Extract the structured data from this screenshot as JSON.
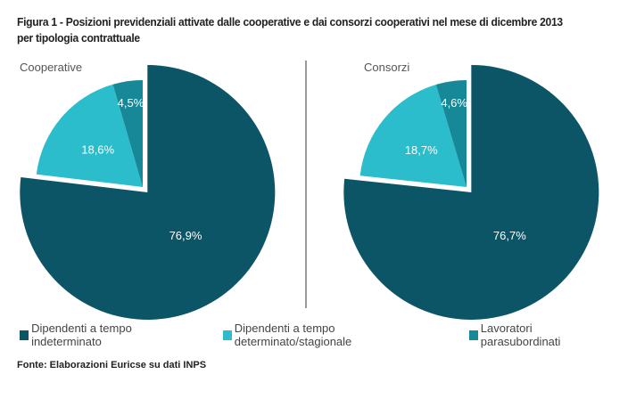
{
  "title": "Figura 1 - Posizioni previdenziali attivate dalle cooperative e dai consorzi cooperativi nel mese di dicembre 2013 per tipologia contrattuale",
  "source": "Fonte: Elaborazioni Euricse su dati INPS",
  "chart_data": [
    {
      "type": "pie",
      "title": "Cooperative",
      "categories": [
        "Dipendenti a tempo indeterminato",
        "Dipendenti a tempo determinato/stagionale",
        "Lavoratori parasubordinati"
      ],
      "values": [
        76.9,
        18.6,
        4.5
      ],
      "labels": [
        "76,9%",
        "18,6%",
        "4,5%"
      ]
    },
    {
      "type": "pie",
      "title": "Consorzi",
      "categories": [
        "Dipendenti a tempo indeterminato",
        "Dipendenti a tempo determinato/stagionale",
        "Lavoratori parasubordinati"
      ],
      "values": [
        76.7,
        18.7,
        4.6
      ],
      "labels": [
        "76,7%",
        "18,7%",
        "4,6%"
      ]
    }
  ],
  "legend": [
    {
      "label": "Dipendenti a tempo indeterminato",
      "color": "#0b5566"
    },
    {
      "label": "Dipendenti a tempo determinato/stagionale",
      "color": "#2bbdcc"
    },
    {
      "label": "Lavoratori parasubordinati",
      "color": "#178898"
    }
  ]
}
